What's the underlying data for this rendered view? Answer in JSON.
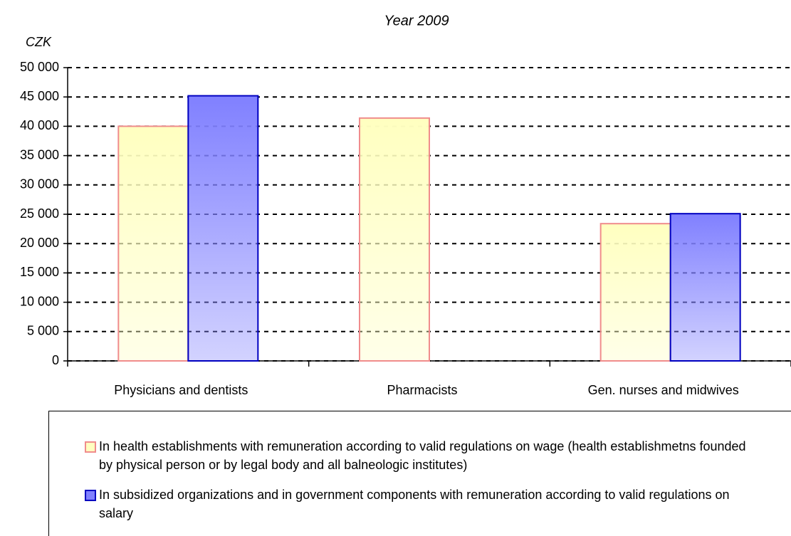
{
  "chart_data": {
    "type": "bar",
    "title": "Year 2009",
    "y_label": "CZK",
    "categories": [
      "Physicians and dentists",
      "Pharmacists",
      "Gen. nurses and midwives"
    ],
    "series": [
      {
        "name": "In health establishments with remuneration according to valid regulations on wage (health establishmetns founded by physical person or by legal body and all balneologic institutes)",
        "color": "#ffffc0",
        "edgecolor": "#f08c8c",
        "values": [
          40000,
          41400,
          23400
        ]
      },
      {
        "name": "In subsidized organizations and in government components with remuneration according to valid regulations on salary",
        "color": "#8080ff",
        "edgecolor": "#0000c0",
        "values": [
          45200,
          null,
          25100
        ]
      }
    ],
    "ylim": [
      0,
      50000
    ],
    "yticks": [
      0,
      {
        "value": 5000,
        "label": "5 000"
      },
      {
        "value": 10000,
        "label": "10 000"
      },
      {
        "value": 15000,
        "label": "15 000"
      },
      {
        "value": 20000,
        "label": "20 000"
      },
      {
        "value": 25000,
        "label": "25 000"
      },
      {
        "value": 30000,
        "label": "30 000"
      },
      {
        "value": 35000,
        "label": "35 000"
      },
      {
        "value": 40000,
        "label": "40 000"
      },
      {
        "value": 45000,
        "label": "45 000"
      },
      {
        "value": 50000,
        "label": "50 000"
      }
    ],
    "grid": true,
    "legend": "bottom"
  }
}
